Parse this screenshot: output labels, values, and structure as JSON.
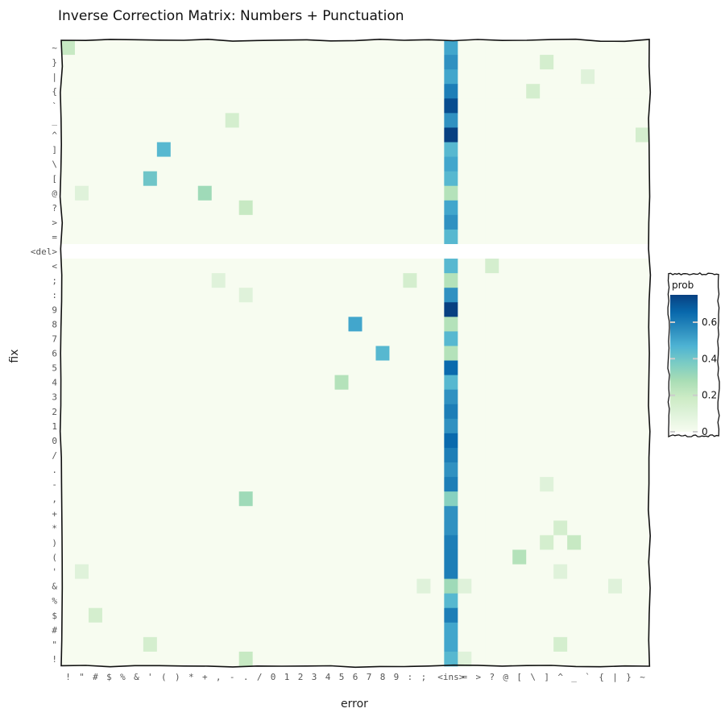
{
  "chart_data": {
    "type": "heatmap",
    "title": "Inverse Correction Matrix: Numbers + Punctuation",
    "xlabel": "error",
    "ylabel": "fix",
    "x_categories": [
      "!",
      "\"",
      "#",
      "$",
      "%",
      "&",
      "'",
      "(",
      ")",
      "*",
      "+",
      ",",
      "-",
      ".",
      "/",
      "0",
      "1",
      "2",
      "3",
      "4",
      "5",
      "6",
      "7",
      "8",
      "9",
      ":",
      ";",
      "<",
      "<ins>",
      "=",
      ">",
      "?",
      "@",
      "[",
      "\\",
      "]",
      "^",
      "_",
      "`",
      "{",
      "|",
      "}",
      "~"
    ],
    "x_tick_labels": [
      "!",
      "\"",
      "#",
      "$",
      "%",
      "&",
      "'",
      "(",
      ")",
      "*",
      "+",
      ",",
      "-",
      ".",
      "/",
      "0",
      "1",
      "2",
      "3",
      "4",
      "5",
      "6",
      "7",
      "8",
      "9",
      ":",
      ";",
      "",
      "<ins>",
      "=",
      ">",
      "?",
      "@",
      "[",
      "\\",
      "]",
      "^",
      "_",
      "`",
      "{",
      "|",
      "}",
      "~"
    ],
    "y_categories": [
      "~",
      "}",
      "|",
      "{",
      "`",
      "_",
      "^",
      "]",
      "\\",
      "[",
      "@",
      "?",
      ">",
      "=",
      "<del>",
      "<",
      ";",
      ":",
      "9",
      "8",
      "7",
      "6",
      "5",
      "4",
      "3",
      "2",
      "1",
      "0",
      "/",
      ".",
      "-",
      ",",
      "+",
      "*",
      ")",
      "(",
      "'",
      "&",
      "%",
      "$",
      "#",
      "\"",
      "!"
    ],
    "color_scale": {
      "title": "prob",
      "min": 0,
      "max": 0.75,
      "ticks": [
        0,
        0.2,
        0.4,
        0.6
      ],
      "colors": [
        "#f7fcf0",
        "#e0f3db",
        "#ccebc5",
        "#a8ddb5",
        "#7bccc4",
        "#4eb3d3",
        "#2b8cbe",
        "#0868ac",
        "#084081"
      ]
    },
    "ins_column": [
      0.5,
      0.55,
      0.5,
      0.6,
      0.72,
      0.55,
      0.75,
      0.45,
      0.5,
      0.45,
      0.25,
      0.5,
      0.55,
      0.45,
      0,
      0.45,
      0.25,
      0.55,
      0.75,
      0.25,
      0.45,
      0.25,
      0.65,
      0.45,
      0.55,
      0.6,
      0.55,
      0.65,
      0.6,
      0.55,
      0.6,
      0.35,
      0.55,
      0.55,
      0.6,
      0.6,
      0.6,
      0.3,
      0.45,
      0.6,
      0.5,
      0.5,
      0.45
    ],
    "cells": [
      {
        "fix": "~",
        "error": "!",
        "value": 0.2
      },
      {
        "fix": "}",
        "error": "]",
        "value": 0.15
      },
      {
        "fix": "|",
        "error": "`",
        "value": 0.1
      },
      {
        "fix": "{",
        "error": "\\",
        "value": 0.15
      },
      {
        "fix": "_",
        "error": "-",
        "value": 0.15
      },
      {
        "fix": "^",
        "error": "~",
        "value": 0.15
      },
      {
        "fix": "]",
        "error": "(",
        "value": 0.45
      },
      {
        "fix": "[",
        "error": "'",
        "value": 0.4
      },
      {
        "fix": "@",
        "error": "+",
        "value": 0.3
      },
      {
        "fix": "@",
        "error": "\"",
        "value": 0.1
      },
      {
        "fix": "?",
        "error": ".",
        "value": 0.2
      },
      {
        "fix": "<",
        "error": "?",
        "value": 0.15
      },
      {
        "fix": ";",
        "error": ":",
        "value": 0.15
      },
      {
        "fix": ";",
        "error": ",",
        "value": 0.1
      },
      {
        "fix": ":",
        "error": ".",
        "value": 0.1
      },
      {
        "fix": "8",
        "error": "6",
        "value": 0.5
      },
      {
        "fix": "6",
        "error": "8",
        "value": 0.45
      },
      {
        "fix": "4",
        "error": "5",
        "value": 0.25
      },
      {
        "fix": ",",
        "error": ".",
        "value": 0.3
      },
      {
        "fix": "-",
        "error": "]",
        "value": 0.1
      },
      {
        "fix": "*",
        "error": "^",
        "value": 0.15
      },
      {
        "fix": ")",
        "error": "]",
        "value": 0.15
      },
      {
        "fix": ")",
        "error": "_",
        "value": 0.2
      },
      {
        "fix": "(",
        "error": "[",
        "value": 0.25
      },
      {
        "fix": "'",
        "error": "\"",
        "value": 0.1
      },
      {
        "fix": "'",
        "error": "^",
        "value": 0.1
      },
      {
        "fix": "&",
        "error": ";",
        "value": 0.1
      },
      {
        "fix": "&",
        "error": "=",
        "value": 0.1
      },
      {
        "fix": "&",
        "error": "|",
        "value": 0.1
      },
      {
        "fix": "$",
        "error": "#",
        "value": 0.15
      },
      {
        "fix": "\"",
        "error": "'",
        "value": 0.15
      },
      {
        "fix": "\"",
        "error": "^",
        "value": 0.15
      },
      {
        "fix": "!",
        "error": ".",
        "value": 0.2
      },
      {
        "fix": "!",
        "error": "=",
        "value": 0.1
      }
    ]
  }
}
